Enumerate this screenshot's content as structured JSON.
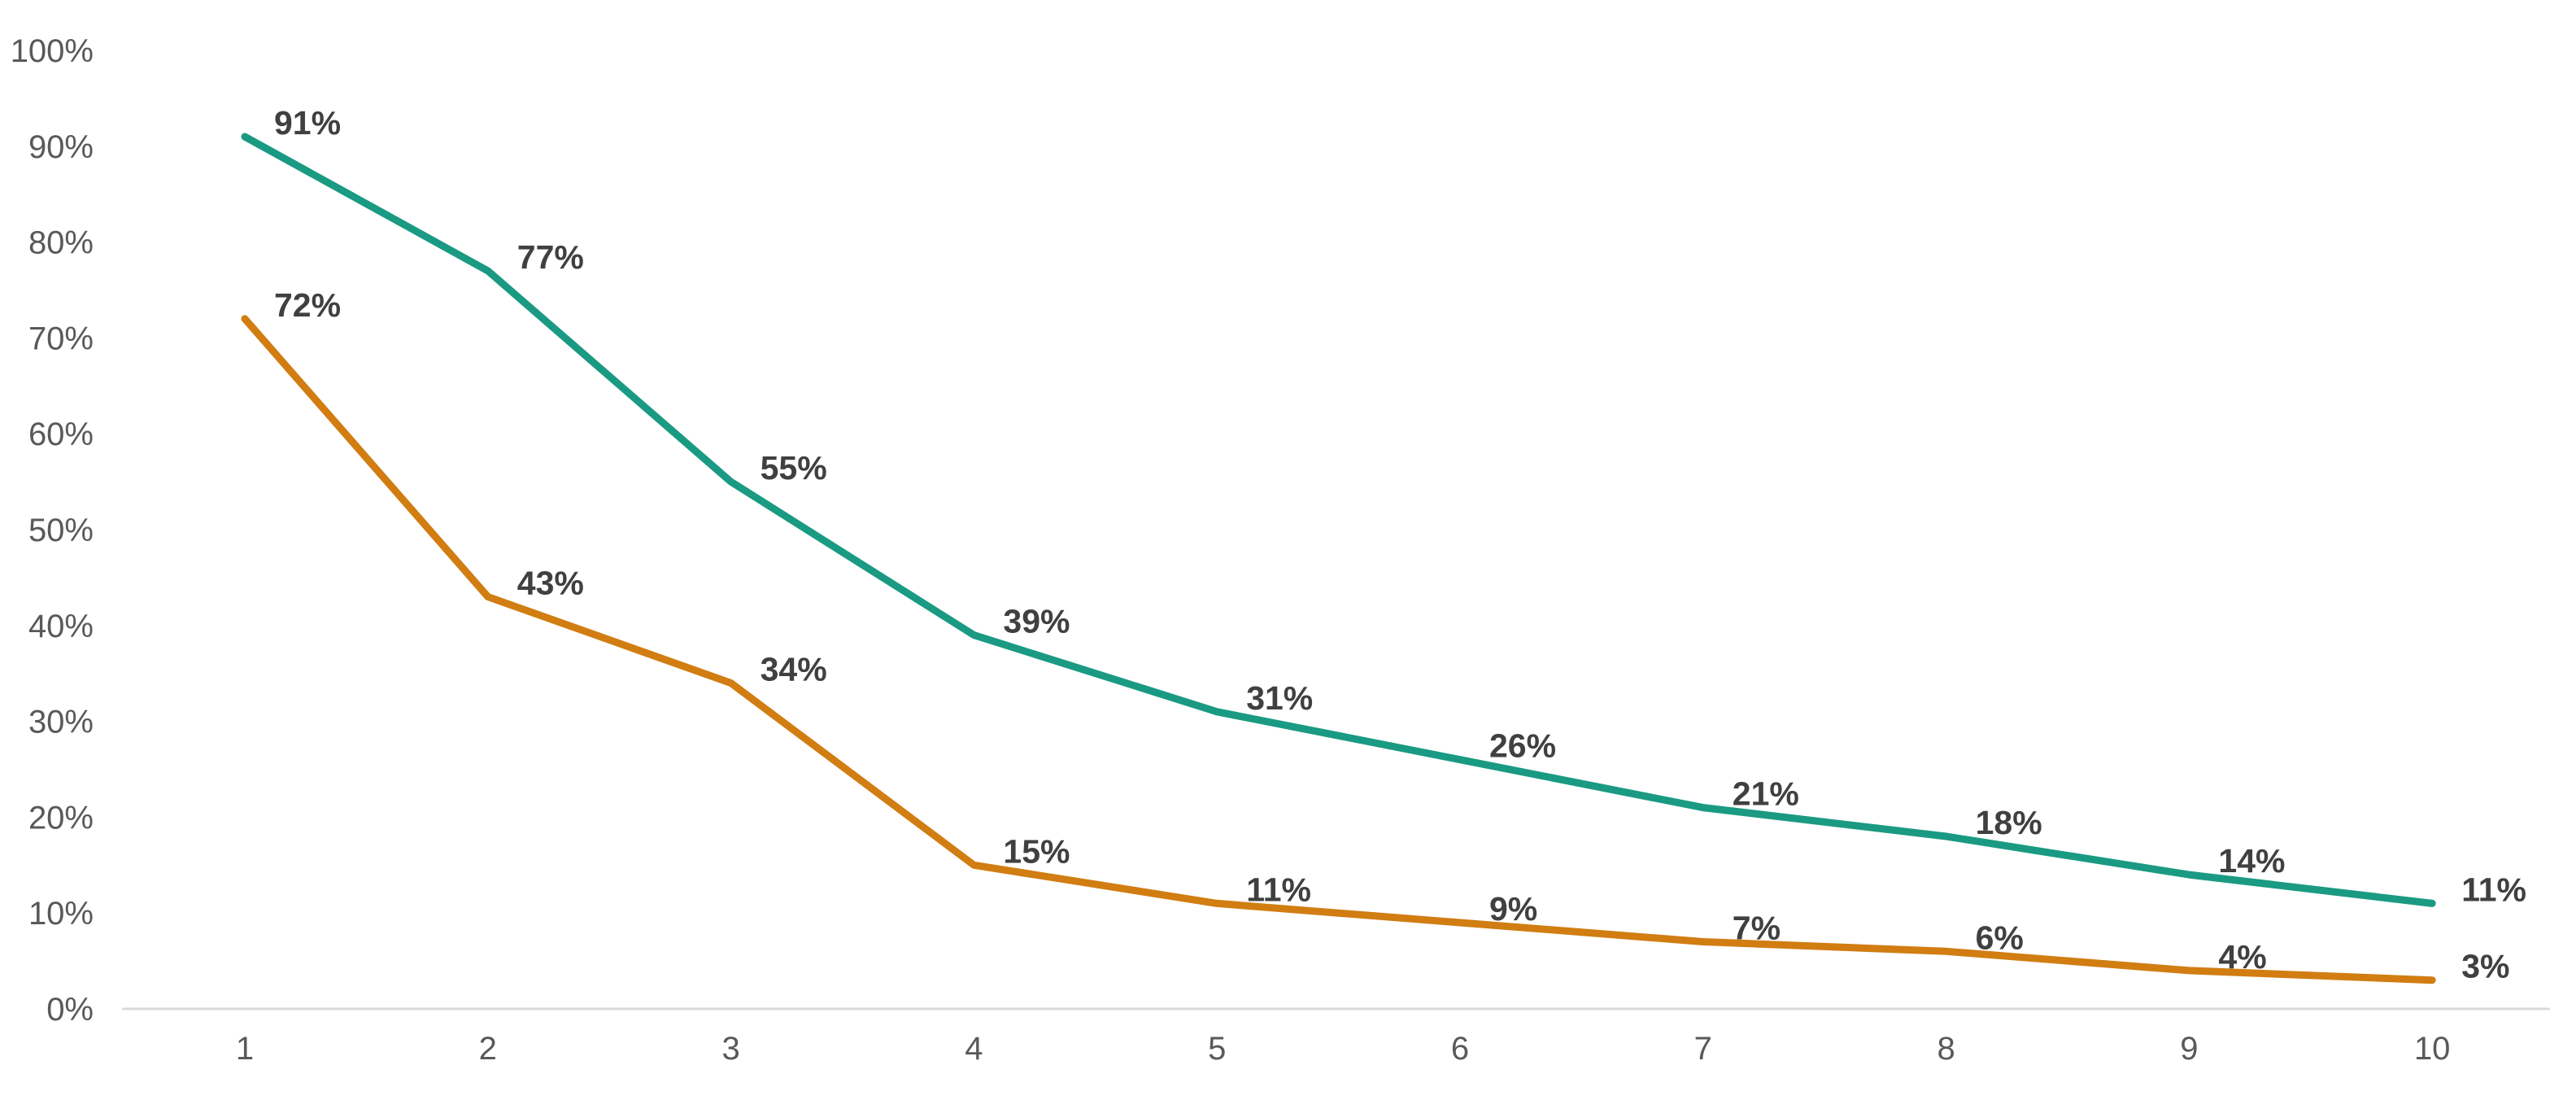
{
  "chart_data": {
    "type": "line",
    "title": "",
    "xlabel": "",
    "ylabel": "",
    "x": [
      1,
      2,
      3,
      4,
      5,
      6,
      7,
      8,
      9,
      10
    ],
    "x_tick_labels": [
      "1",
      "2",
      "3",
      "4",
      "5",
      "6",
      "7",
      "8",
      "9",
      "10"
    ],
    "y_tick_labels": [
      "0%",
      "10%",
      "20%",
      "30%",
      "40%",
      "50%",
      "60%",
      "70%",
      "80%",
      "90%",
      "100%"
    ],
    "ylim": [
      0,
      100
    ],
    "y_unit": "%",
    "grid": false,
    "legend": "none",
    "series": [
      {
        "color": "#1a9a83",
        "values": [
          91,
          77,
          55,
          39,
          31,
          26,
          21,
          18,
          14,
          11
        ],
        "labels": [
          "91%",
          "77%",
          "55%",
          "39%",
          "31%",
          "26%",
          "21%",
          "18%",
          "14%",
          "11%"
        ]
      },
      {
        "color": "#d17d12",
        "values": [
          72,
          43,
          34,
          15,
          11,
          9,
          7,
          6,
          4,
          3
        ],
        "labels": [
          "72%",
          "43%",
          "34%",
          "15%",
          "11%",
          "9%",
          "7%",
          "6%",
          "4%",
          "3%"
        ]
      }
    ],
    "axis_color": "#d9d9d9",
    "tick_label_color": "#595959",
    "data_label_color": "#404040"
  }
}
